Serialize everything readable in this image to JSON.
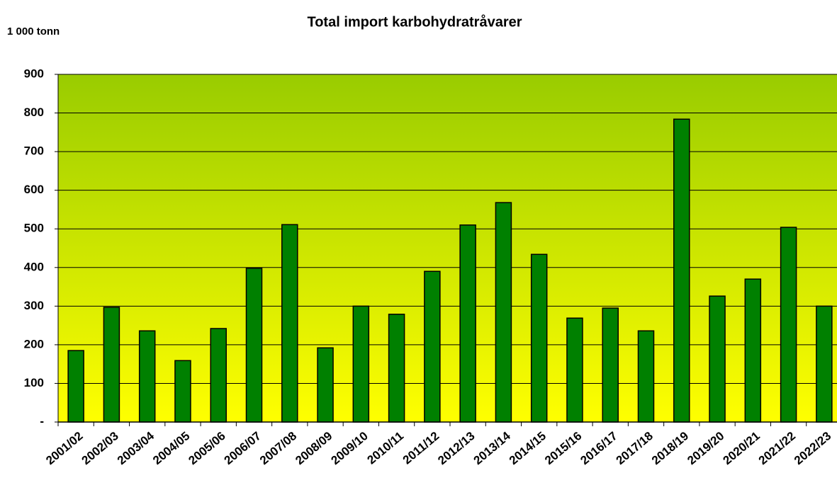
{
  "chart_data": {
    "type": "bar",
    "title": "Total import  karbohydratråvarer",
    "y_label": "1 000 tonn",
    "categories": [
      "2001/02",
      "2002/03",
      "2003/04",
      "2004/05",
      "2005/06",
      "2006/07",
      "2007/08",
      "2008/09",
      "2009/10",
      "2010/11",
      "2011/12",
      "2012/13",
      "2013/14",
      "2014/15",
      "2015/16",
      "2016/17",
      "2017/18",
      "2018/19",
      "2019/20",
      "2020/21",
      "2021/22",
      "2022/23"
    ],
    "values": [
      185,
      297,
      236,
      159,
      242,
      398,
      511,
      192,
      300,
      279,
      390,
      510,
      568,
      434,
      269,
      295,
      236,
      784,
      326,
      370,
      504,
      300
    ],
    "color": "#008000",
    "ylim": [
      0,
      900
    ],
    "yticks": [
      {
        "value": 0,
        "label": "-"
      },
      100,
      200,
      300,
      400,
      500,
      600,
      700,
      800,
      900
    ],
    "grid": true
  }
}
